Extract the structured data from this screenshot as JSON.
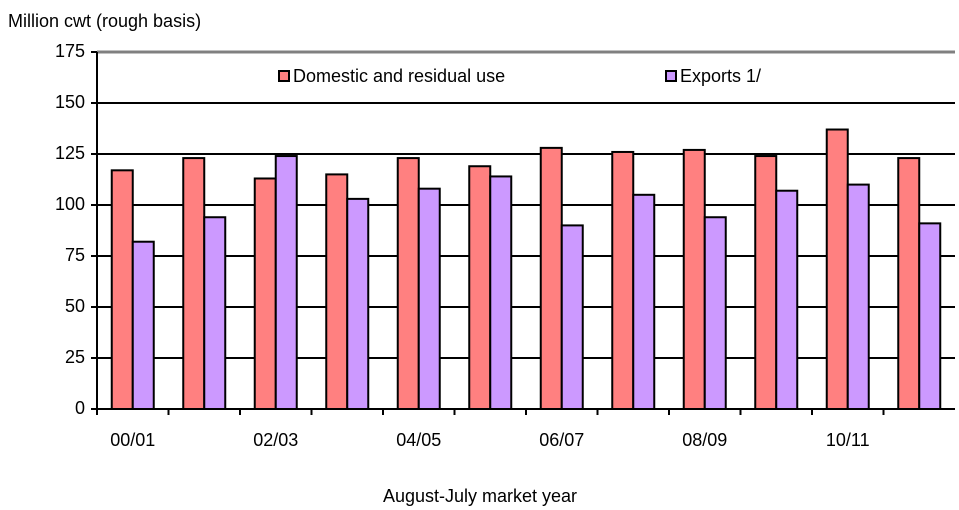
{
  "chart_data": {
    "type": "bar",
    "y_label": "Million cwt (rough basis)",
    "x_label": "August-July market year",
    "categories": [
      "00/01",
      null,
      "02/03",
      null,
      "04/05",
      null,
      "06/07",
      null,
      "08/09",
      null,
      "10/11",
      null
    ],
    "series": [
      {
        "name": "Domestic and residual use",
        "color": "#ff8080",
        "values": [
          117,
          123,
          113,
          115,
          123,
          119,
          128,
          126,
          127,
          124,
          137,
          123
        ]
      },
      {
        "name": "Exports 1/",
        "color": "#cc99ff",
        "values": [
          82,
          94,
          124,
          103,
          108,
          114,
          90,
          105,
          94,
          107,
          110,
          91
        ]
      }
    ],
    "ylim": [
      0,
      175
    ],
    "yticks": [
      0,
      25,
      50,
      75,
      100,
      125,
      150,
      175
    ],
    "grid": true
  }
}
